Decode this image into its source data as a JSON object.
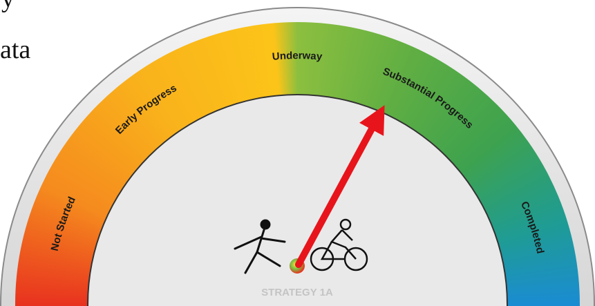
{
  "fragments": {
    "line1": "y",
    "line2": "ata"
  },
  "gauge": {
    "labels": [
      "Not Started",
      "Early Progress",
      "Underway",
      "Substantial Progress",
      "Completed"
    ],
    "caption": "STRATEGY 1A"
  }
}
